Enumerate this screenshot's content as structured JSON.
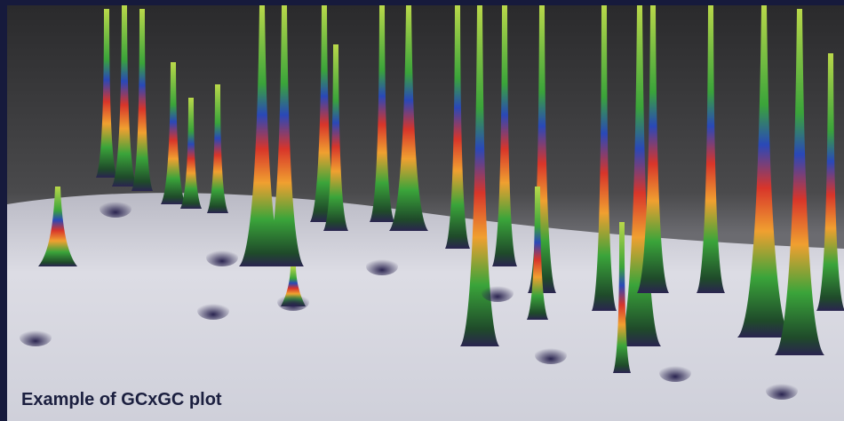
{
  "caption": "Example of GCxGC plot"
}
